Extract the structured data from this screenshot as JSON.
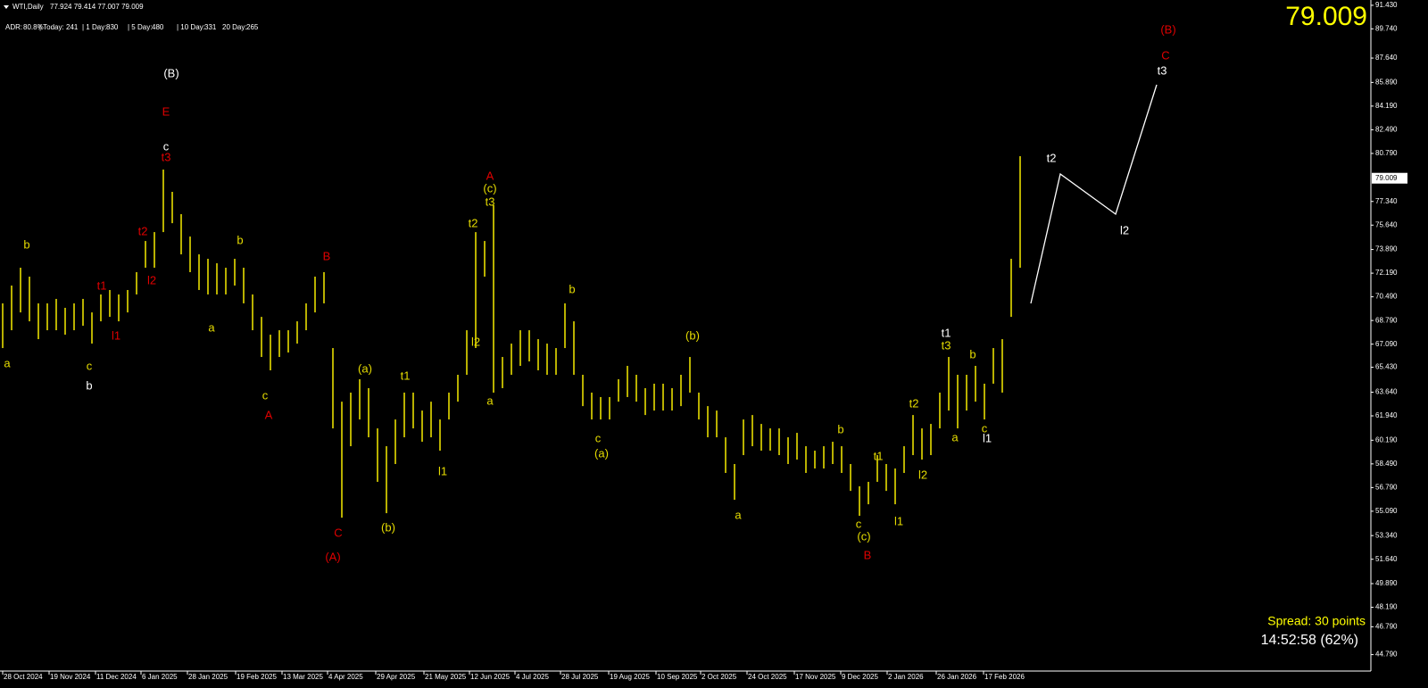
{
  "header": {
    "symbol": "WTI,Daily",
    "ohlc": "77.924 79.414 77.007 79.009"
  },
  "stats": [
    {
      "label": "ADR:",
      "value": "80.8%"
    },
    {
      "label": "| Today:",
      "value": "241"
    },
    {
      "label": "| 1 Day:",
      "value": "830"
    },
    {
      "label": "| 5 Day:",
      "value": "480"
    },
    {
      "label": "| 10 Day:",
      "value": "331"
    },
    {
      "label": "20 Day:",
      "value": "265"
    }
  ],
  "spread": "Spread: 30 points",
  "clock": "14:52:58 (62%)",
  "chart_data": {
    "type": "range-bar",
    "color": "#e6dc00",
    "last": 79.009,
    "last_label": "79.009",
    "highs": [
      70.02,
      71.3,
      72.58,
      71.94,
      70.02,
      70.02,
      70.34,
      69.7,
      70.02,
      70.34,
      69.37,
      70.66,
      70.98,
      70.66,
      70.98,
      72.26,
      74.5,
      75.14,
      79.63,
      78.03,
      76.43,
      74.82,
      73.54,
      73.22,
      72.9,
      72.58,
      73.22,
      72.58,
      70.66,
      69.05,
      67.77,
      68.09,
      68.09,
      68.73,
      70.02,
      71.94,
      72.26,
      66.81,
      62.96,
      63.61,
      64.57,
      63.93,
      61.04,
      59.76,
      61.68,
      63.61,
      63.61,
      62.32,
      62.96,
      61.68,
      63.61,
      64.89,
      68.09,
      75.14,
      74.5,
      77.07,
      66.17,
      67.13,
      68.09,
      68.09,
      67.45,
      67.13,
      66.81,
      70.02,
      68.73,
      64.89,
      63.61,
      63.29,
      63.29,
      64.57,
      65.53,
      64.89,
      63.93,
      64.25,
      64.25,
      63.93,
      64.89,
      66.17,
      63.61,
      62.64,
      62.32,
      60.4,
      58.48,
      61.68,
      62.0,
      61.36,
      61.04,
      61.04,
      60.4,
      60.72,
      59.76,
      59.44,
      59.76,
      60.08,
      59.76,
      58.48,
      56.88,
      57.2,
      59.12,
      58.48,
      58.16,
      59.76,
      62.0,
      61.04,
      61.36,
      63.61,
      66.17,
      64.89,
      64.89,
      65.53,
      64.25,
      66.81,
      67.45,
      73.22,
      80.59
    ],
    "lows": [
      66.81,
      68.09,
      69.37,
      68.73,
      67.45,
      68.09,
      68.09,
      67.77,
      68.09,
      68.41,
      67.13,
      68.73,
      69.05,
      68.73,
      69.37,
      70.66,
      72.58,
      72.58,
      75.14,
      75.78,
      73.54,
      72.26,
      70.98,
      70.66,
      70.66,
      70.66,
      71.3,
      70.02,
      68.09,
      66.17,
      65.21,
      66.17,
      66.49,
      67.13,
      68.09,
      69.37,
      70.02,
      61.04,
      54.63,
      59.76,
      61.68,
      60.4,
      57.2,
      54.95,
      58.48,
      60.4,
      61.04,
      60.08,
      60.4,
      59.44,
      61.68,
      62.96,
      64.89,
      66.81,
      71.94,
      63.61,
      63.93,
      64.89,
      65.53,
      65.85,
      65.21,
      64.89,
      64.89,
      66.81,
      64.89,
      62.64,
      61.68,
      61.68,
      61.68,
      62.96,
      63.29,
      62.96,
      62.0,
      62.32,
      62.32,
      62.32,
      62.64,
      63.61,
      61.68,
      60.4,
      60.4,
      57.84,
      55.91,
      59.12,
      59.76,
      59.44,
      59.44,
      59.12,
      58.48,
      58.8,
      57.84,
      58.16,
      58.16,
      58.48,
      57.84,
      56.55,
      54.76,
      55.59,
      57.2,
      56.55,
      55.59,
      57.84,
      59.12,
      58.8,
      59.12,
      61.04,
      62.32,
      61.04,
      62.32,
      62.96,
      61.68,
      64.25,
      63.61,
      69.05,
      72.58
    ],
    "xlim": [
      -0.3,
      153.3
    ],
    "ylim": [
      43.61,
      91.81
    ],
    "xticks": [
      {
        "value": 0,
        "label": "28 Oct 2024"
      },
      {
        "value": 5.2,
        "label": "19 Nov 2024"
      },
      {
        "value": 10.4,
        "label": "11 Dec 2024"
      },
      {
        "value": 15.5,
        "label": "6 Jan 2025"
      },
      {
        "value": 20.7,
        "label": "28 Jan 2025"
      },
      {
        "value": 26.1,
        "label": "19 Feb 2025"
      },
      {
        "value": 31.3,
        "label": "13 Mar 2025"
      },
      {
        "value": 36.4,
        "label": "4 Apr 2025"
      },
      {
        "value": 41.8,
        "label": "29 Apr 2025"
      },
      {
        "value": 47.2,
        "label": "21 May 2025"
      },
      {
        "value": 52.3,
        "label": "12 Jun 2025"
      },
      {
        "value": 57.4,
        "label": "4 Jul 2025"
      },
      {
        "value": 62.5,
        "label": "28 Jul 2025"
      },
      {
        "value": 67.9,
        "label": "19 Aug 2025"
      },
      {
        "value": 73.2,
        "label": "10 Sep 2025"
      },
      {
        "value": 78.2,
        "label": "2 Oct 2025"
      },
      {
        "value": 83.4,
        "label": "24 Oct 2025"
      },
      {
        "value": 88.7,
        "label": "17 Nov 2025"
      },
      {
        "value": 93.9,
        "label": "9 Dec 2025"
      },
      {
        "value": 99.1,
        "label": "2 Jan 2026"
      },
      {
        "value": 104.6,
        "label": "26 Jan 2026"
      },
      {
        "value": 109.9,
        "label": "17 Feb 2026"
      }
    ],
    "yticks": [
      {
        "value": 91.43,
        "label": "91.430"
      },
      {
        "value": 89.74,
        "label": "89.740"
      },
      {
        "value": 87.64,
        "label": "87.640"
      },
      {
        "value": 85.89,
        "label": "85.890"
      },
      {
        "value": 84.19,
        "label": "84.190"
      },
      {
        "value": 82.49,
        "label": "82.490"
      },
      {
        "value": 80.79,
        "label": "80.790"
      },
      {
        "value": 77.34,
        "label": "77.340"
      },
      {
        "value": 75.64,
        "label": "75.640"
      },
      {
        "value": 73.89,
        "label": "73.890"
      },
      {
        "value": 72.19,
        "label": "72.190"
      },
      {
        "value": 70.49,
        "label": "70.490"
      },
      {
        "value": 68.79,
        "label": "68.790"
      },
      {
        "value": 67.09,
        "label": "67.090"
      },
      {
        "value": 65.43,
        "label": "65.430"
      },
      {
        "value": 63.64,
        "label": "63.640"
      },
      {
        "value": 61.94,
        "label": "61.940"
      },
      {
        "value": 60.19,
        "label": "60.190"
      },
      {
        "value": 58.49,
        "label": "58.490"
      },
      {
        "value": 56.79,
        "label": "56.790"
      },
      {
        "value": 55.09,
        "label": "55.090"
      },
      {
        "value": 53.34,
        "label": "53.340"
      },
      {
        "value": 51.64,
        "label": "51.640"
      },
      {
        "value": 49.89,
        "label": "49.890"
      },
      {
        "value": 48.19,
        "label": "48.190"
      },
      {
        "value": 46.79,
        "label": "46.790"
      },
      {
        "value": 44.79,
        "label": "44.790"
      }
    ],
    "annotations": [
      {
        "text": "a",
        "color": "#e6dc00"
      },
      {
        "text": "b",
        "color": "#e6dc00"
      },
      {
        "text": "c",
        "color": "#e6dc00"
      },
      {
        "text": "b",
        "color": "#ffffff"
      },
      {
        "text": "t1",
        "color": "#e00000"
      },
      {
        "text": "l1",
        "color": "#e00000"
      },
      {
        "text": "t2",
        "color": "#e00000"
      },
      {
        "text": "l2",
        "color": "#e00000"
      },
      {
        "text": "t3",
        "color": "#e00000"
      },
      {
        "text": "c",
        "color": "#ffffff"
      },
      {
        "text": "E",
        "color": "#e00000"
      },
      {
        "text": "(B)",
        "color": "#ffffff"
      },
      {
        "text": "b",
        "color": "#e6dc00"
      },
      {
        "text": "a",
        "color": "#e6dc00"
      },
      {
        "text": "c",
        "color": "#e6dc00"
      },
      {
        "text": "A",
        "color": "#e00000"
      },
      {
        "text": "B",
        "color": "#e00000"
      },
      {
        "text": "C",
        "color": "#e00000"
      },
      {
        "text": "(A)",
        "color": "#e00000"
      },
      {
        "text": "(a)",
        "color": "#e6dc00"
      },
      {
        "text": "(b)",
        "color": "#e6dc00"
      },
      {
        "text": "t1",
        "color": "#e6dc00"
      },
      {
        "text": "l1",
        "color": "#e6dc00"
      },
      {
        "text": "t2",
        "color": "#e6dc00"
      },
      {
        "text": "l2",
        "color": "#e6dc00"
      },
      {
        "text": "A",
        "color": "#e00000"
      },
      {
        "text": "(c)",
        "color": "#e6dc00"
      },
      {
        "text": "t3",
        "color": "#e6dc00"
      },
      {
        "text": "a",
        "color": "#e6dc00"
      },
      {
        "text": "b",
        "color": "#e6dc00"
      },
      {
        "text": "c",
        "color": "#e6dc00"
      },
      {
        "text": "(a)",
        "color": "#e6dc00"
      },
      {
        "text": "(b)",
        "color": "#e6dc00"
      },
      {
        "text": "a",
        "color": "#e6dc00"
      },
      {
        "text": "b",
        "color": "#e6dc00"
      },
      {
        "text": "t1",
        "color": "#e6dc00"
      },
      {
        "text": "l2",
        "color": "#e6dc00"
      },
      {
        "text": "c",
        "color": "#e6dc00"
      },
      {
        "text": "(c)",
        "color": "#e6dc00"
      },
      {
        "text": "B",
        "color": "#e00000"
      },
      {
        "text": "l1",
        "color": "#e6dc00"
      },
      {
        "text": "t2",
        "color": "#e6dc00"
      },
      {
        "text": "t1",
        "color": "#ffffff"
      },
      {
        "text": "t3",
        "color": "#e6dc00"
      },
      {
        "text": "a",
        "color": "#e6dc00"
      },
      {
        "text": "b",
        "color": "#e6dc00"
      },
      {
        "text": "c",
        "color": "#e6dc00"
      },
      {
        "text": "l1",
        "color": "#ffffff"
      },
      {
        "text": "t2",
        "color": "#ffffff"
      },
      {
        "text": "l2",
        "color": "#ffffff"
      },
      {
        "text": "t3",
        "color": "#ffffff"
      },
      {
        "text": "C",
        "color": "#e00000"
      },
      {
        "text": "(B)",
        "color": "#e00000"
      }
    ]
  }
}
